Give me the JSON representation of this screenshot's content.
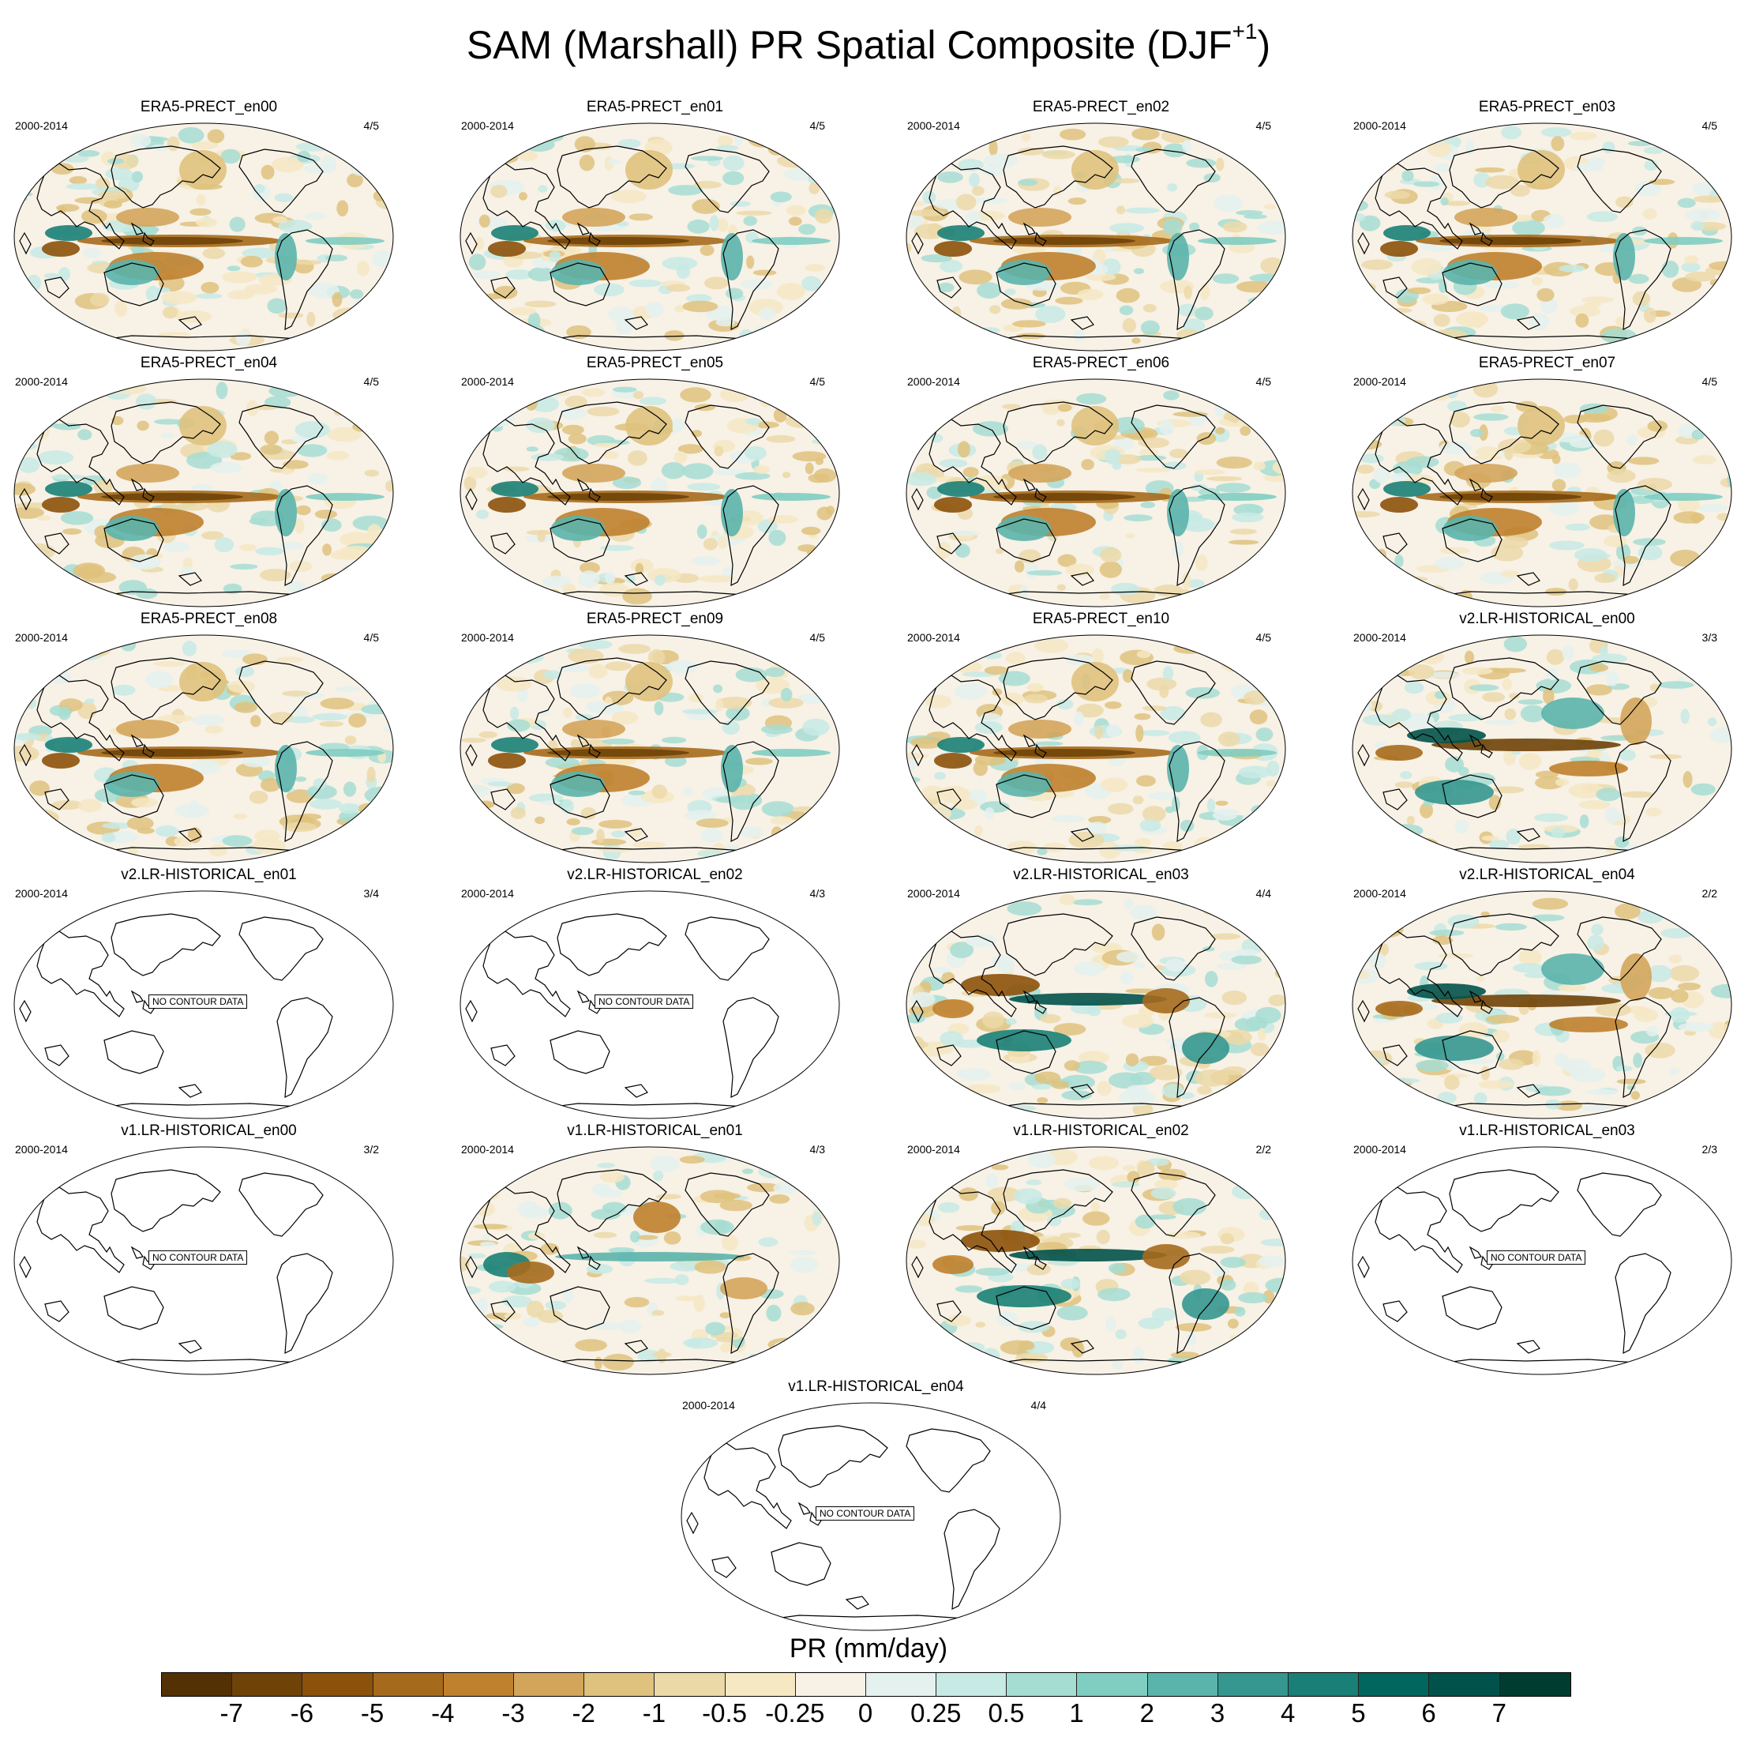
{
  "title": {
    "main": "SAM (Marshall) PR Spatial Composite (DJF",
    "sup": "+1",
    "close": ")"
  },
  "panels": [
    {
      "title": "ERA5-PRECT_en00",
      "period": "2000-2014",
      "ratio": "4/5",
      "has_data": true,
      "variant": "era5"
    },
    {
      "title": "ERA5-PRECT_en01",
      "period": "2000-2014",
      "ratio": "4/5",
      "has_data": true,
      "variant": "era5"
    },
    {
      "title": "ERA5-PRECT_en02",
      "period": "2000-2014",
      "ratio": "4/5",
      "has_data": true,
      "variant": "era5"
    },
    {
      "title": "ERA5-PRECT_en03",
      "period": "2000-2014",
      "ratio": "4/5",
      "has_data": true,
      "variant": "era5"
    },
    {
      "title": "ERA5-PRECT_en04",
      "period": "2000-2014",
      "ratio": "4/5",
      "has_data": true,
      "variant": "era5"
    },
    {
      "title": "ERA5-PRECT_en05",
      "period": "2000-2014",
      "ratio": "4/5",
      "has_data": true,
      "variant": "era5"
    },
    {
      "title": "ERA5-PRECT_en06",
      "period": "2000-2014",
      "ratio": "4/5",
      "has_data": true,
      "variant": "era5"
    },
    {
      "title": "ERA5-PRECT_en07",
      "period": "2000-2014",
      "ratio": "4/5",
      "has_data": true,
      "variant": "era5"
    },
    {
      "title": "ERA5-PRECT_en08",
      "period": "2000-2014",
      "ratio": "4/5",
      "has_data": true,
      "variant": "era5"
    },
    {
      "title": "ERA5-PRECT_en09",
      "period": "2000-2014",
      "ratio": "4/5",
      "has_data": true,
      "variant": "era5"
    },
    {
      "title": "ERA5-PRECT_en10",
      "period": "2000-2014",
      "ratio": "4/5",
      "has_data": true,
      "variant": "era5"
    },
    {
      "title": "v2.LR-HISTORICAL_en00",
      "period": "2000-2014",
      "ratio": "3/3",
      "has_data": true,
      "variant": "model-a"
    },
    {
      "title": "v2.LR-HISTORICAL_en01",
      "period": "2000-2014",
      "ratio": "3/4",
      "has_data": false
    },
    {
      "title": "v2.LR-HISTORICAL_en02",
      "period": "2000-2014",
      "ratio": "4/3",
      "has_data": false
    },
    {
      "title": "v2.LR-HISTORICAL_en03",
      "period": "2000-2014",
      "ratio": "4/4",
      "has_data": true,
      "variant": "model-b"
    },
    {
      "title": "v2.LR-HISTORICAL_en04",
      "period": "2000-2014",
      "ratio": "2/2",
      "has_data": true,
      "variant": "model-a"
    },
    {
      "title": "v1.LR-HISTORICAL_en00",
      "period": "2000-2014",
      "ratio": "3/2",
      "has_data": false
    },
    {
      "title": "v1.LR-HISTORICAL_en01",
      "period": "2000-2014",
      "ratio": "4/3",
      "has_data": true,
      "variant": "model-c"
    },
    {
      "title": "v1.LR-HISTORICAL_en02",
      "period": "2000-2014",
      "ratio": "2/2",
      "has_data": true,
      "variant": "model-b"
    },
    {
      "title": "v1.LR-HISTORICAL_en03",
      "period": "2000-2014",
      "ratio": "2/3",
      "has_data": false
    },
    {
      "title": "v1.LR-HISTORICAL_en04",
      "period": "2000-2014",
      "ratio": "4/4",
      "has_data": false
    }
  ],
  "no_data_label": "NO CONTOUR DATA",
  "colorbar": {
    "label": "PR (mm/day)",
    "ticks": [
      "-7",
      "-6",
      "-5",
      "-4",
      "-3",
      "-2",
      "-1",
      "-0.5",
      "-0.25",
      "0",
      "0.25",
      "0.5",
      "1",
      "2",
      "3",
      "4",
      "5",
      "6",
      "7"
    ],
    "colors": [
      "#543005",
      "#6f4208",
      "#8c510a",
      "#a66a1c",
      "#bf812d",
      "#d3a55b",
      "#dfc27d",
      "#ecd9a8",
      "#f6e8c3",
      "#f7f1e6",
      "#e4f1ef",
      "#c7eae5",
      "#a6ddd2",
      "#80cdc1",
      "#5ab4ac",
      "#35978f",
      "#1a7f76",
      "#01665e",
      "#01524a",
      "#003c30"
    ]
  }
}
